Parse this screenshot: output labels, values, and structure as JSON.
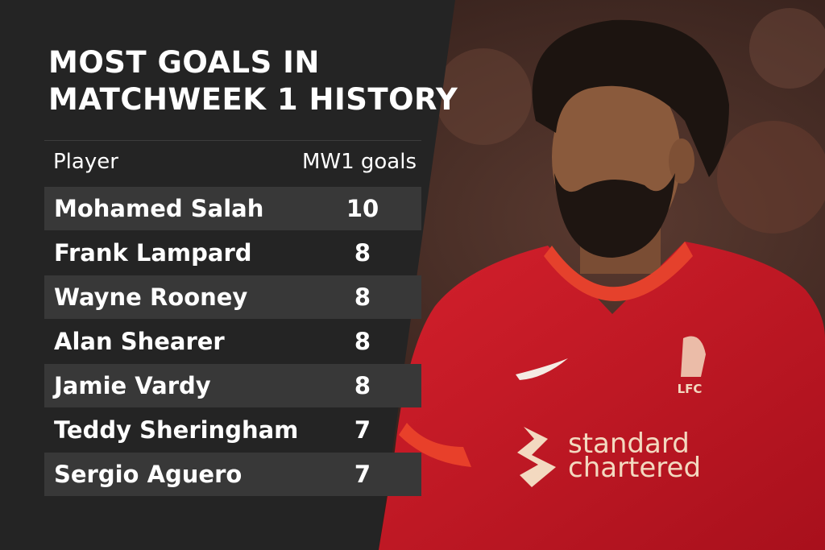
{
  "header": {
    "title": [
      "MOST GOALS IN",
      "MATCHWEEK 1 HISTORY"
    ]
  },
  "table": {
    "columns": [
      "Player",
      "MW1 goals"
    ],
    "rows": [
      [
        "Mohamed Salah",
        10
      ],
      [
        "Frank Lampard",
        8
      ],
      [
        "Wayne Rooney",
        8
      ],
      [
        "Alan Shearer",
        8
      ],
      [
        "Jamie Vardy",
        8
      ],
      [
        "Teddy Sheringham",
        7
      ],
      [
        "Sergio Aguero",
        7
      ]
    ]
  },
  "photo": {
    "crest": "LFC",
    "sponsor": [
      "standard",
      "chartered"
    ]
  }
}
